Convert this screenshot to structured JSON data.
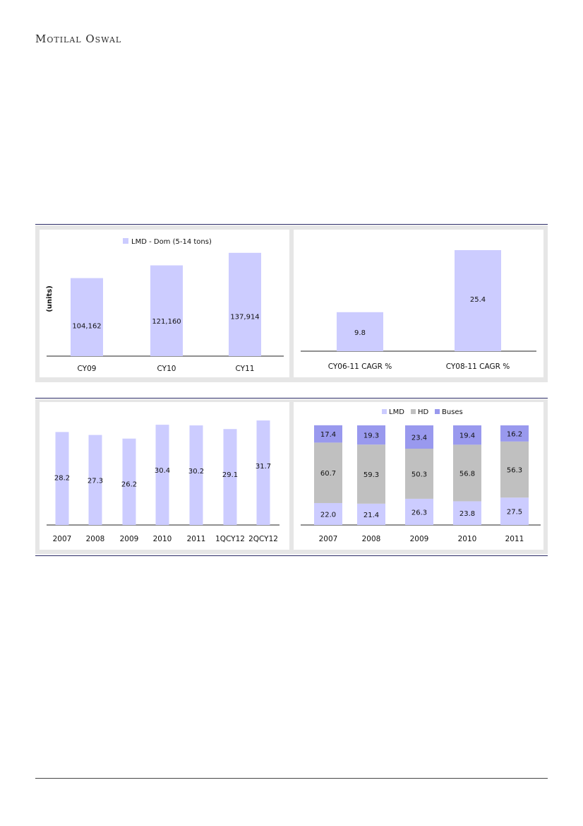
{
  "brand": "Motilal Oswal",
  "colors": {
    "lmd": "#ccccff",
    "hd": "#c0c0c0",
    "buses": "#9999ee",
    "axis": "#222222",
    "panel": "#e6e6e6"
  },
  "chart_data": [
    {
      "type": "bar",
      "categories": [
        "CY09",
        "CY10",
        "CY11"
      ],
      "series": [
        {
          "name": "LMD - Dom (5-14 tons)",
          "values": [
            104162,
            121160,
            137914
          ]
        }
      ],
      "data_labels": [
        "104,162",
        "121,160",
        "137,914"
      ],
      "ylabel": "(units)",
      "ylim": [
        0,
        150000
      ],
      "legend": "top-center",
      "grid": false
    },
    {
      "type": "bar",
      "categories": [
        "CY06-11 CAGR %",
        "CY08-11 CAGR %"
      ],
      "values": [
        9.8,
        25.4
      ],
      "data_labels": [
        "9.8",
        "25.4"
      ],
      "ylim": [
        0,
        27
      ],
      "grid": false
    },
    {
      "type": "bar",
      "categories": [
        "2007",
        "2008",
        "2009",
        "2010",
        "2011",
        "1QCY12",
        "2QCY12"
      ],
      "values": [
        28.2,
        27.3,
        26.2,
        30.4,
        30.2,
        29.1,
        31.7
      ],
      "data_labels": [
        "28.2",
        "27.3",
        "26.2",
        "30.4",
        "30.2",
        "29.1",
        "31.7"
      ],
      "ylim": [
        0,
        33
      ],
      "grid": false
    },
    {
      "type": "bar",
      "stacked": true,
      "categories": [
        "2007",
        "2008",
        "2009",
        "2010",
        "2011"
      ],
      "series": [
        {
          "name": "LMD",
          "values": [
            22.0,
            21.4,
            26.3,
            23.8,
            27.5
          ],
          "labels": [
            "22.0",
            "21.4",
            "26.3",
            "23.8",
            "27.5"
          ]
        },
        {
          "name": "HD",
          "values": [
            60.7,
            59.3,
            50.3,
            56.8,
            56.3
          ],
          "labels": [
            "60.7",
            "59.3",
            "50.3",
            "56.8",
            "56.3"
          ]
        },
        {
          "name": "Buses",
          "values": [
            17.4,
            19.3,
            23.4,
            19.4,
            16.2
          ],
          "labels": [
            "17.4",
            "19.3",
            "23.4",
            "19.4",
            "16.2"
          ]
        }
      ],
      "ylim": [
        0,
        100
      ],
      "legend": "top-center",
      "grid": false
    }
  ]
}
